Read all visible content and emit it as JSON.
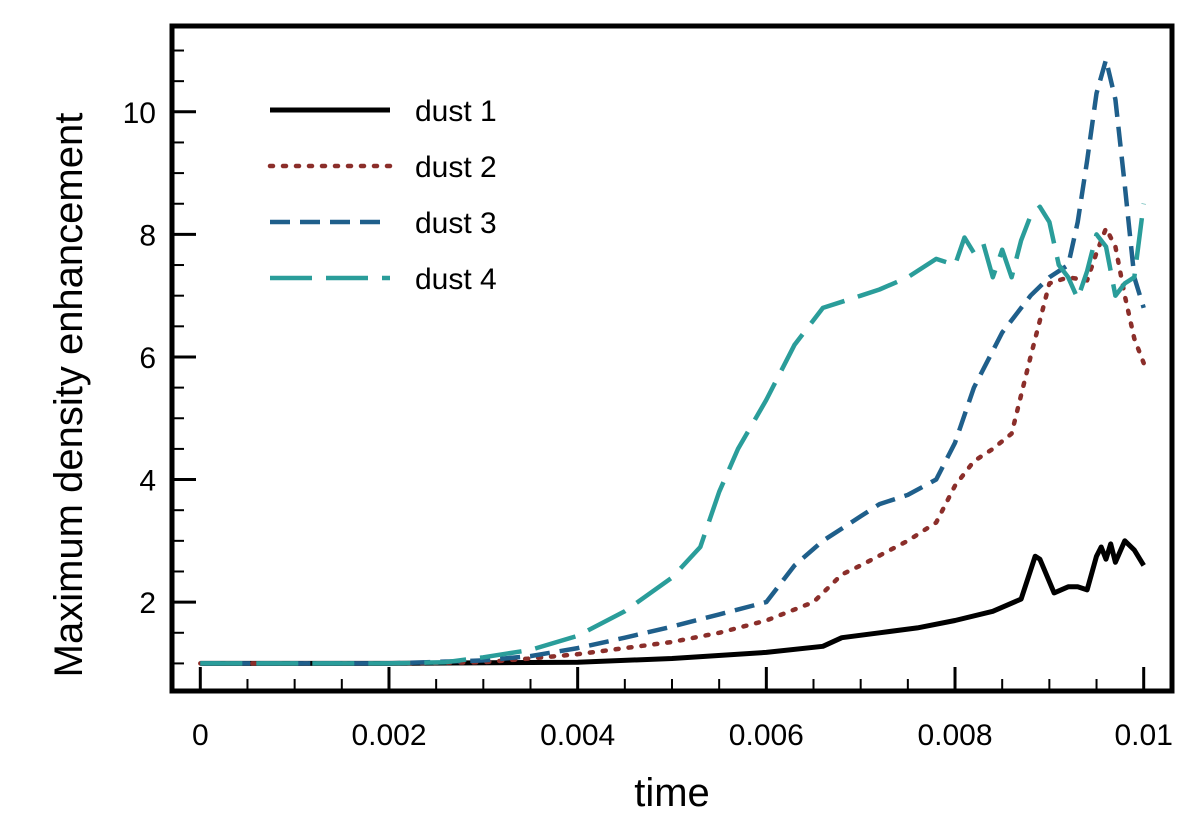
{
  "chart_data": {
    "type": "line",
    "title": "",
    "xlabel": "time",
    "ylabel": "Maximum density enhancement",
    "xlim": [
      -0.0003,
      0.0103
    ],
    "ylim": [
      0.55,
      11.4
    ],
    "x_ticks": [
      0,
      0.002,
      0.004,
      0.006,
      0.008,
      0.01
    ],
    "x_tick_labels": [
      "0",
      "0.002",
      "0.004",
      "0.006",
      "0.008",
      "0.01"
    ],
    "y_ticks": [
      2,
      4,
      6,
      8,
      10
    ],
    "y_tick_labels": [
      "2",
      "4",
      "6",
      "8",
      "10"
    ],
    "grid": false,
    "legend_position": "top-left",
    "series": [
      {
        "name": "dust 1",
        "color": "#000000",
        "style": "solid",
        "x": [
          0,
          0.002,
          0.004,
          0.005,
          0.006,
          0.0066,
          0.0068,
          0.0072,
          0.0076,
          0.008,
          0.0084,
          0.0087,
          0.00885,
          0.0089,
          0.00905,
          0.0092,
          0.0093,
          0.0094,
          0.0095,
          0.00955,
          0.0096,
          0.00965,
          0.0097,
          0.0098,
          0.0099,
          0.01
        ],
        "y": [
          1.0,
          1.0,
          1.02,
          1.08,
          1.18,
          1.28,
          1.42,
          1.5,
          1.58,
          1.7,
          1.85,
          2.05,
          2.75,
          2.7,
          2.15,
          2.25,
          2.25,
          2.2,
          2.75,
          2.9,
          2.7,
          2.95,
          2.65,
          3.0,
          2.85,
          2.6
        ]
      },
      {
        "name": "dust 2",
        "color": "#8B2E2A",
        "style": "dotted",
        "x": [
          0,
          0.002,
          0.003,
          0.0035,
          0.004,
          0.0045,
          0.005,
          0.0055,
          0.006,
          0.0065,
          0.0068,
          0.007,
          0.0075,
          0.0078,
          0.008,
          0.0082,
          0.0084,
          0.0086,
          0.0088,
          0.009,
          0.0092,
          0.0094,
          0.0095,
          0.0096,
          0.0097,
          0.0098,
          0.0099,
          0.01
        ],
        "y": [
          1.0,
          1.0,
          1.02,
          1.08,
          1.15,
          1.25,
          1.35,
          1.5,
          1.7,
          2.0,
          2.45,
          2.6,
          3.0,
          3.3,
          3.9,
          4.3,
          4.5,
          4.75,
          6.0,
          7.2,
          7.3,
          7.25,
          7.7,
          8.1,
          7.8,
          7.0,
          6.3,
          5.9
        ]
      },
      {
        "name": "dust 3",
        "color": "#1F5F8B",
        "style": "dashed",
        "x": [
          0,
          0.002,
          0.003,
          0.0035,
          0.004,
          0.0045,
          0.005,
          0.0055,
          0.006,
          0.0063,
          0.0066,
          0.0068,
          0.007,
          0.0072,
          0.0075,
          0.0078,
          0.008,
          0.0082,
          0.0085,
          0.0088,
          0.009,
          0.0092,
          0.0093,
          0.0094,
          0.0095,
          0.0096,
          0.0097,
          0.0098,
          0.0099,
          0.01
        ],
        "y": [
          1.0,
          1.0,
          1.05,
          1.12,
          1.25,
          1.42,
          1.6,
          1.8,
          2.0,
          2.6,
          3.0,
          3.2,
          3.4,
          3.6,
          3.75,
          4.0,
          4.6,
          5.5,
          6.4,
          7.0,
          7.3,
          7.5,
          8.2,
          9.2,
          10.3,
          10.85,
          10.2,
          8.8,
          7.3,
          6.8
        ]
      },
      {
        "name": "dust 4",
        "color": "#2A9D9A",
        "style": "long-dashed",
        "x": [
          0,
          0.002,
          0.0026,
          0.003,
          0.0035,
          0.004,
          0.0045,
          0.005,
          0.0053,
          0.0055,
          0.0057,
          0.006,
          0.0063,
          0.0066,
          0.0068,
          0.007,
          0.0072,
          0.0075,
          0.0078,
          0.008,
          0.0081,
          0.0082,
          0.0083,
          0.0084,
          0.0085,
          0.0086,
          0.0087,
          0.0088,
          0.0089,
          0.009,
          0.0091,
          0.0092,
          0.0093,
          0.0094,
          0.0095,
          0.0096,
          0.0097,
          0.0098,
          0.0099,
          0.01
        ],
        "y": [
          1.0,
          1.0,
          1.02,
          1.1,
          1.22,
          1.45,
          1.85,
          2.4,
          2.9,
          3.8,
          4.5,
          5.3,
          6.2,
          6.8,
          6.9,
          7.0,
          7.1,
          7.3,
          7.6,
          7.5,
          7.95,
          7.7,
          7.85,
          7.3,
          7.75,
          7.3,
          7.9,
          8.3,
          8.45,
          8.2,
          7.5,
          7.3,
          6.95,
          7.4,
          8.0,
          7.8,
          7.0,
          7.2,
          7.3,
          8.5
        ]
      }
    ]
  }
}
